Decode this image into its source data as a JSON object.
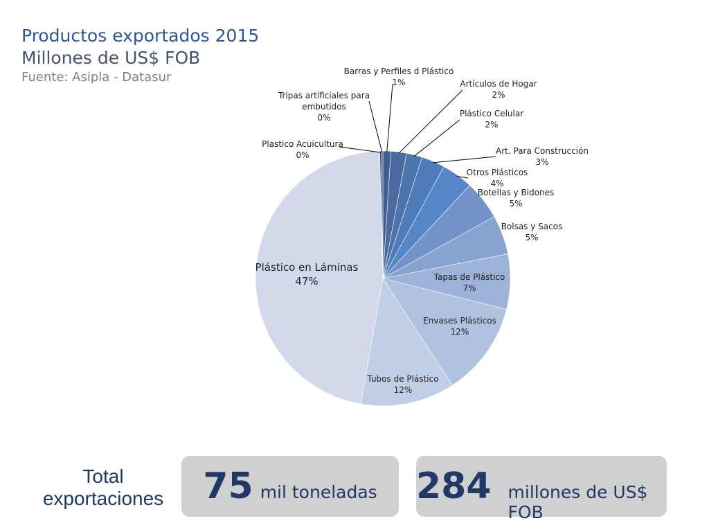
{
  "header": {
    "title": "Productos exportados 2015",
    "subtitle": "Millones de US$ FOB",
    "source": "Fuente: Asipla - Datasur"
  },
  "chart_data": {
    "type": "pie",
    "title": "",
    "slices": [
      {
        "lines": [
          "Barras y Perfiles d Plástico",
          "1%"
        ],
        "value": 1,
        "color": "#3f5f91"
      },
      {
        "lines": [
          "Artículos de Hogar",
          "2%"
        ],
        "value": 2,
        "color": "#4a6aa0"
      },
      {
        "lines": [
          "Plástico Celular",
          "2%"
        ],
        "value": 2,
        "color": "#4d73ac"
      },
      {
        "lines": [
          "Art. Para Construcción",
          "3%"
        ],
        "value": 3,
        "color": "#4f7cbb"
      },
      {
        "lines": [
          "Otros Plásticos",
          "4%"
        ],
        "value": 4,
        "color": "#5586c6"
      },
      {
        "lines": [
          "Botellas y Bidones",
          "5%"
        ],
        "value": 5,
        "color": "#7393c8"
      },
      {
        "lines": [
          "Bolsas y Sacos",
          "5%"
        ],
        "value": 5,
        "color": "#88a3d0"
      },
      {
        "lines": [
          "Tapas de Plástico",
          "7%"
        ],
        "value": 7,
        "color": "#9cb2d8"
      },
      {
        "lines": [
          "Envases Plásticos",
          "12%"
        ],
        "value": 12,
        "color": "#afc2e0"
      },
      {
        "lines": [
          "Tubos de Plástico",
          "12%"
        ],
        "value": 12,
        "color": "#c1cfe6"
      },
      {
        "lines": [
          "Plástico en Láminas",
          "47%"
        ],
        "value": 47,
        "color": "#d1d9ea"
      },
      {
        "lines": [
          "Plastico Acuicultura",
          "0%"
        ],
        "value": 0.2,
        "color": "#3c5480"
      },
      {
        "lines": [
          "Tripas artificiales para",
          "embutidos",
          "0%"
        ],
        "value": 0.2,
        "color": "#3d5a88"
      }
    ]
  },
  "totals": {
    "label_line1": "Total",
    "label_line2": "exportaciones",
    "tons_value": "75",
    "tons_unit": "mil toneladas",
    "usd_value": "284",
    "usd_unit": "millones de US$ FOB"
  }
}
